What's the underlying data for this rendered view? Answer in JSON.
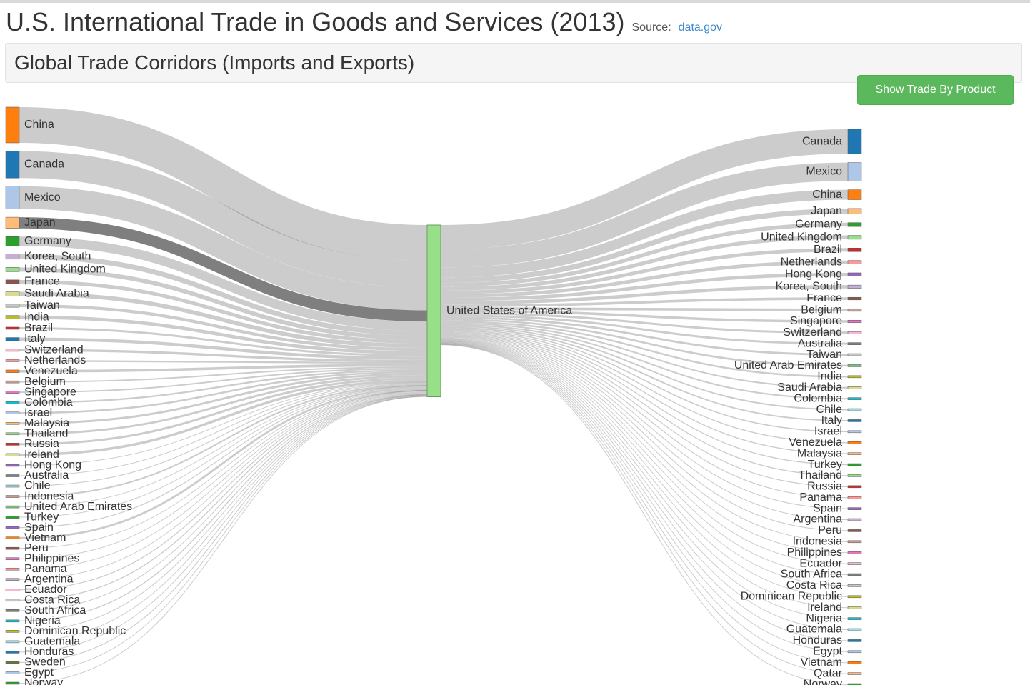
{
  "header": {
    "title": "U.S. International Trade in Goods and Services (2013)",
    "source_label": "Source:",
    "source_link": "data.gov"
  },
  "panel": {
    "title": "Global Trade Corridors (Imports and Exports)"
  },
  "button": {
    "label": "Show Trade By Product"
  },
  "chart_data": {
    "type": "sankey",
    "center": "United States of America",
    "center_color": "#98df8a",
    "link_color": "#000000",
    "highlight_left": 3,
    "left": [
      {
        "name": "China",
        "value": 440,
        "color": "#ff7f0e"
      },
      {
        "name": "Canada",
        "value": 332,
        "color": "#1f77b4"
      },
      {
        "name": "Mexico",
        "value": 280,
        "color": "#aec7e8"
      },
      {
        "name": "Japan",
        "value": 138,
        "color": "#ffbb78"
      },
      {
        "name": "Germany",
        "value": 114,
        "color": "#2ca02c"
      },
      {
        "name": "Korea, South",
        "value": 62,
        "color": "#c5b0d5"
      },
      {
        "name": "United Kingdom",
        "value": 53,
        "color": "#98df8a"
      },
      {
        "name": "France",
        "value": 45,
        "color": "#8c564b"
      },
      {
        "name": "Saudi Arabia",
        "value": 51,
        "color": "#dbdb8d"
      },
      {
        "name": "Taiwan",
        "value": 38,
        "color": "#c7c7c7"
      },
      {
        "name": "India",
        "value": 42,
        "color": "#bcbd22"
      },
      {
        "name": "Brazil",
        "value": 27,
        "color": "#d62728"
      },
      {
        "name": "Italy",
        "value": 39,
        "color": "#1f77b4"
      },
      {
        "name": "Switzerland",
        "value": 30,
        "color": "#f7b6d2"
      },
      {
        "name": "Netherlands",
        "value": 21,
        "color": "#ff9896"
      },
      {
        "name": "Venezuela",
        "value": 32,
        "color": "#ff7f0e"
      },
      {
        "name": "Belgium",
        "value": 17,
        "color": "#c49c94"
      },
      {
        "name": "Singapore",
        "value": 18,
        "color": "#e377c2"
      },
      {
        "name": "Colombia",
        "value": 21,
        "color": "#17becf"
      },
      {
        "name": "Israel",
        "value": 23,
        "color": "#aec7e8"
      },
      {
        "name": "Malaysia",
        "value": 27,
        "color": "#ffbb78"
      },
      {
        "name": "Thailand",
        "value": 26,
        "color": "#98df8a"
      },
      {
        "name": "Russia",
        "value": 27,
        "color": "#d62728"
      },
      {
        "name": "Ireland",
        "value": 31,
        "color": "#dbdb8d"
      },
      {
        "name": "Hong Kong",
        "value": 5,
        "color": "#9467bd"
      },
      {
        "name": "Australia",
        "value": 9,
        "color": "#7f7f7f"
      },
      {
        "name": "Chile",
        "value": 10,
        "color": "#9edae5"
      },
      {
        "name": "Indonesia",
        "value": 19,
        "color": "#c49c94"
      },
      {
        "name": "United Arab Emirates",
        "value": 2.4,
        "color": "#74c476"
      },
      {
        "name": "Turkey",
        "value": 6,
        "color": "#2ca02c"
      },
      {
        "name": "Spain",
        "value": 11,
        "color": "#9467bd"
      },
      {
        "name": "Vietnam",
        "value": 25,
        "color": "#ff7f0e"
      },
      {
        "name": "Peru",
        "value": 8,
        "color": "#8c564b"
      },
      {
        "name": "Philippines",
        "value": 9,
        "color": "#e377c2"
      },
      {
        "name": "Panama",
        "value": 0.4,
        "color": "#ff9896"
      },
      {
        "name": "Argentina",
        "value": 4.5,
        "color": "#c5b0d5"
      },
      {
        "name": "Ecuador",
        "value": 11,
        "color": "#f7b6d2"
      },
      {
        "name": "Costa Rica",
        "value": 12,
        "color": "#c7c7c7"
      },
      {
        "name": "South Africa",
        "value": 8.5,
        "color": "#7f7f7f"
      },
      {
        "name": "Nigeria",
        "value": 12,
        "color": "#17becf"
      },
      {
        "name": "Dominican Republic",
        "value": 4,
        "color": "#bcbd22"
      },
      {
        "name": "Guatemala",
        "value": 4.3,
        "color": "#9edae5"
      },
      {
        "name": "Honduras",
        "value": 4.6,
        "color": "#1f77b4"
      },
      {
        "name": "Sweden",
        "value": 10,
        "color": "#637939"
      },
      {
        "name": "Egypt",
        "value": 1.5,
        "color": "#aec7e8"
      },
      {
        "name": "Norway",
        "value": 6,
        "color": "#2ca02c"
      }
    ],
    "right": [
      {
        "name": "Canada",
        "value": 301,
        "color": "#1f77b4"
      },
      {
        "name": "Mexico",
        "value": 226,
        "color": "#aec7e8"
      },
      {
        "name": "China",
        "value": 122,
        "color": "#ff7f0e"
      },
      {
        "name": "Japan",
        "value": 65,
        "color": "#ffbb78"
      },
      {
        "name": "Germany",
        "value": 48,
        "color": "#2ca02c"
      },
      {
        "name": "United Kingdom",
        "value": 47,
        "color": "#98df8a"
      },
      {
        "name": "Brazil",
        "value": 44,
        "color": "#d62728"
      },
      {
        "name": "Netherlands",
        "value": 43,
        "color": "#ff9896"
      },
      {
        "name": "Hong Kong",
        "value": 42,
        "color": "#9467bd"
      },
      {
        "name": "Korea, South",
        "value": 41,
        "color": "#c5b0d5"
      },
      {
        "name": "France",
        "value": 32,
        "color": "#8c564b"
      },
      {
        "name": "Belgium",
        "value": 32,
        "color": "#c49c94"
      },
      {
        "name": "Singapore",
        "value": 31,
        "color": "#e377c2"
      },
      {
        "name": "Switzerland",
        "value": 27,
        "color": "#f7b6d2"
      },
      {
        "name": "Australia",
        "value": 26,
        "color": "#7f7f7f"
      },
      {
        "name": "Taiwan",
        "value": 26,
        "color": "#c7c7c7"
      },
      {
        "name": "United Arab Emirates",
        "value": 24,
        "color": "#74c476"
      },
      {
        "name": "India",
        "value": 22,
        "color": "#bcbd22"
      },
      {
        "name": "Saudi Arabia",
        "value": 19,
        "color": "#dbdb8d"
      },
      {
        "name": "Colombia",
        "value": 18.6,
        "color": "#17becf"
      },
      {
        "name": "Chile",
        "value": 17.5,
        "color": "#9edae5"
      },
      {
        "name": "Italy",
        "value": 17,
        "color": "#1f77b4"
      },
      {
        "name": "Israel",
        "value": 14,
        "color": "#aec7e8"
      },
      {
        "name": "Venezuela",
        "value": 13,
        "color": "#ff7f0e"
      },
      {
        "name": "Malaysia",
        "value": 13,
        "color": "#ffbb78"
      },
      {
        "name": "Turkey",
        "value": 12,
        "color": "#2ca02c"
      },
      {
        "name": "Thailand",
        "value": 12,
        "color": "#98df8a"
      },
      {
        "name": "Russia",
        "value": 11,
        "color": "#d62728"
      },
      {
        "name": "Panama",
        "value": 10.8,
        "color": "#ff9896"
      },
      {
        "name": "Spain",
        "value": 10,
        "color": "#9467bd"
      },
      {
        "name": "Argentina",
        "value": 10,
        "color": "#c5b0d5"
      },
      {
        "name": "Peru",
        "value": 10,
        "color": "#8c564b"
      },
      {
        "name": "Indonesia",
        "value": 9,
        "color": "#c49c94"
      },
      {
        "name": "Philippines",
        "value": 8.5,
        "color": "#e377c2"
      },
      {
        "name": "Ecuador",
        "value": 7.6,
        "color": "#f7b6d2"
      },
      {
        "name": "South Africa",
        "value": 7.3,
        "color": "#7f7f7f"
      },
      {
        "name": "Costa Rica",
        "value": 7,
        "color": "#c7c7c7"
      },
      {
        "name": "Dominican Republic",
        "value": 7,
        "color": "#bcbd22"
      },
      {
        "name": "Ireland",
        "value": 7,
        "color": "#dbdb8d"
      },
      {
        "name": "Nigeria",
        "value": 6.4,
        "color": "#17becf"
      },
      {
        "name": "Guatemala",
        "value": 6,
        "color": "#9edae5"
      },
      {
        "name": "Honduras",
        "value": 5.5,
        "color": "#1f77b4"
      },
      {
        "name": "Egypt",
        "value": 6.6,
        "color": "#aec7e8"
      },
      {
        "name": "Vietnam",
        "value": 5,
        "color": "#ff7f0e"
      },
      {
        "name": "Qatar",
        "value": 5,
        "color": "#ffbb78"
      },
      {
        "name": "Norway",
        "value": 4.5,
        "color": "#2ca02c"
      }
    ]
  }
}
